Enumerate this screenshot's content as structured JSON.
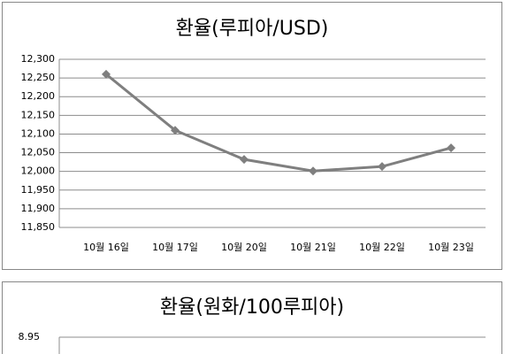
{
  "chart_data": [
    {
      "type": "line",
      "title": "환율(루피아/USD)",
      "categories": [
        "10월 16일",
        "10월 17일",
        "10월 20일",
        "10월 21일",
        "10월 22일",
        "10월 23일"
      ],
      "values": [
        12260,
        12110,
        12032,
        12001,
        12013,
        12063
      ],
      "color": "#7f7f7f",
      "ylim": [
        11850,
        12300
      ],
      "yticks": [
        {
          "value": 11850,
          "label": "11,850"
        },
        {
          "value": 11900,
          "label": "11,900"
        },
        {
          "value": 11950,
          "label": "11,950"
        },
        {
          "value": 12000,
          "label": "12,000"
        },
        {
          "value": 12050,
          "label": "12,050"
        },
        {
          "value": 12100,
          "label": "12,100"
        },
        {
          "value": 12150,
          "label": "12,150"
        },
        {
          "value": 12200,
          "label": "12,200"
        },
        {
          "value": 12250,
          "label": "12,250"
        },
        {
          "value": 12300,
          "label": "12,300"
        }
      ],
      "grid": true
    },
    {
      "type": "line",
      "title": "환율(원화/100루피아)",
      "yticks": [
        8.95
      ],
      "grid": true
    }
  ]
}
